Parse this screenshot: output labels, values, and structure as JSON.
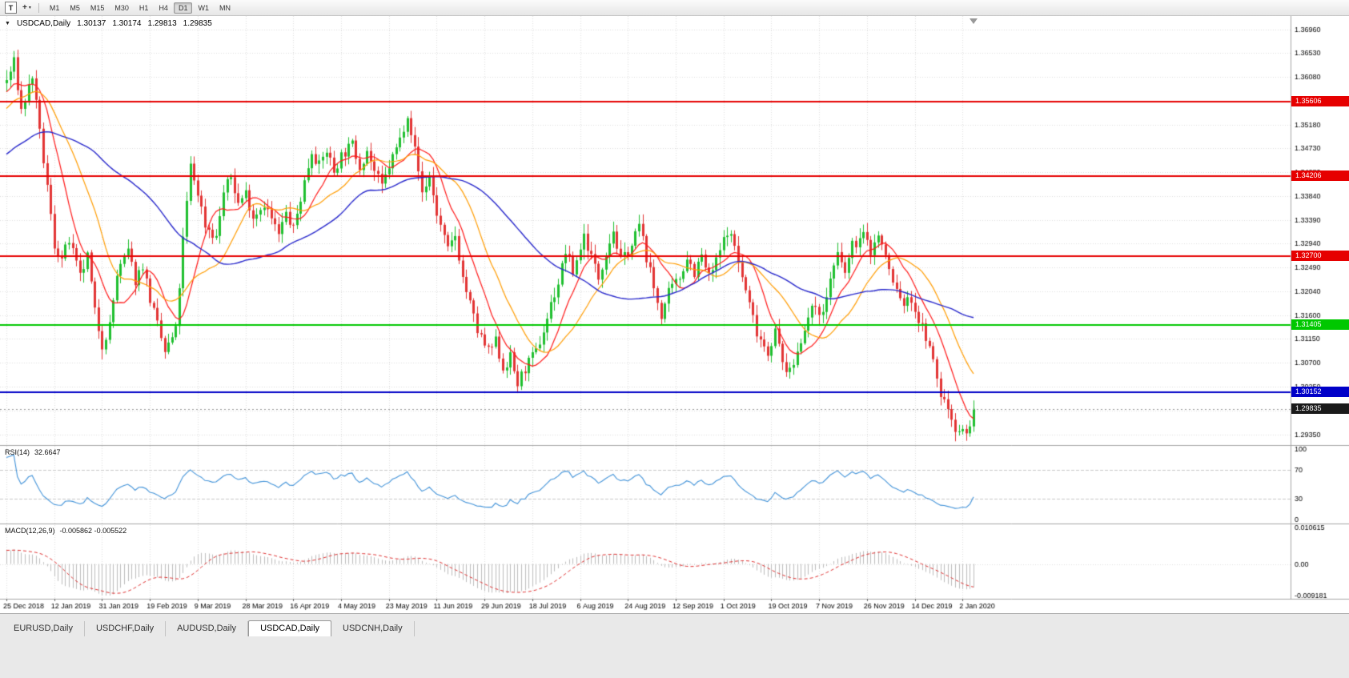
{
  "window": {
    "title": "USDCAD,Daily"
  },
  "icons": {
    "chart_expander": "▼",
    "dropdown_caret": "▾",
    "cursor_tool": "+"
  },
  "toolbar": {
    "text_tool_label": "T",
    "timeframes": [
      "M1",
      "M5",
      "M15",
      "M30",
      "H1",
      "H4",
      "D1",
      "W1",
      "MN"
    ],
    "active_timeframe": "D1"
  },
  "chart": {
    "symbol_header": "USDCAD,Daily",
    "ohlc": {
      "open": "1.30137",
      "high": "1.30174",
      "low": "1.29813",
      "close": "1.29835"
    },
    "price_axis_labels": [
      "1.36960",
      "1.36530",
      "1.36080",
      "1.35630",
      "1.35180",
      "1.34730",
      "1.34280",
      "1.33840",
      "1.33390",
      "1.32940",
      "1.32490",
      "1.32040",
      "1.31600",
      "1.31150",
      "1.30700",
      "1.30250",
      "1.29800",
      "1.29350"
    ],
    "date_labels": [
      "25 Dec 2018",
      "12 Jan 2019",
      "31 Jan 2019",
      "19 Feb 2019",
      "9 Mar 2019",
      "28 Mar 2019",
      "16 Apr 2019",
      "4 May 2019",
      "23 May 2019",
      "11 Jun 2019",
      "29 Jun 2019",
      "18 Jul 2019",
      "6 Aug 2019",
      "24 Aug 2019",
      "12 Sep 2019",
      "1 Oct 2019",
      "19 Oct 2019",
      "7 Nov 2019",
      "26 Nov 2019",
      "14 Dec 2019",
      "2 Jan 2020"
    ],
    "levels": [
      {
        "value": "1.35606",
        "price": 1.35606,
        "color": "#e60000",
        "type": "resistance"
      },
      {
        "value": "1.34206",
        "price": 1.34206,
        "color": "#e60000",
        "type": "resistance"
      },
      {
        "value": "1.32700",
        "price": 1.327,
        "color": "#e60000",
        "type": "resistance"
      },
      {
        "value": "1.31405",
        "price": 1.31405,
        "color": "#00c800",
        "type": "support"
      },
      {
        "value": "1.30152",
        "price": 1.30152,
        "color": "#0000c8",
        "type": "support"
      }
    ],
    "current_price": {
      "value": "1.29835",
      "price": 1.29835,
      "badge_color": "#1a1a1a"
    }
  },
  "indicators": {
    "rsi": {
      "label": "RSI(14)",
      "value": "32.6647",
      "period": 14,
      "color": "#4293d9",
      "range": [
        0,
        100
      ],
      "level_lines": [
        70,
        30
      ],
      "axis_labels": [
        {
          "text": "100",
          "v": 100
        },
        {
          "text": "70",
          "v": 70
        },
        {
          "text": "30",
          "v": 30
        },
        {
          "text": "0",
          "v": 0
        }
      ]
    },
    "macd": {
      "label": "MACD(12,26,9)",
      "values": "-0.005862 -0.005522",
      "fast": 12,
      "slow": 26,
      "signal": 9,
      "max": 0.010615,
      "min": -0.009181,
      "histogram_color": "#bdbdbd",
      "signal_color": "#e03030",
      "axis_labels": [
        {
          "text": "0.010615",
          "v": 0.010615
        },
        {
          "text": "0.00",
          "v": 0
        },
        {
          "text": "-0.009181",
          "v": -0.009181
        }
      ]
    }
  },
  "chart_data": {
    "type": "candlestick",
    "symbol": "USDCAD",
    "timeframe": "Daily",
    "bars": 264,
    "bars_per_date_tick": 13,
    "last_close": 1.29835,
    "price_axis_range": {
      "top": 1.3722,
      "bottom": 1.2917
    },
    "up_color": "#1fbf2f",
    "down_color": "#e23434",
    "moving_averages": [
      {
        "period": 10,
        "color": "#ff1a1a"
      },
      {
        "period": 20,
        "color": "#ff9c00"
      },
      {
        "period": 50,
        "color": "#2929cc"
      }
    ],
    "price_path": [
      [
        -60,
        1.331
      ],
      [
        -40,
        1.337
      ],
      [
        -20,
        1.348
      ],
      [
        -8,
        1.356
      ],
      [
        0,
        1.36
      ],
      [
        2,
        1.3635
      ],
      [
        4,
        1.3545
      ],
      [
        7,
        1.361
      ],
      [
        9,
        1.35
      ],
      [
        11,
        1.34
      ],
      [
        13,
        1.329
      ],
      [
        15,
        1.3265
      ],
      [
        17,
        1.33
      ],
      [
        20,
        1.323
      ],
      [
        22,
        1.327
      ],
      [
        24,
        1.3165
      ],
      [
        26,
        1.3105
      ],
      [
        28,
        1.314
      ],
      [
        30,
        1.3235
      ],
      [
        33,
        1.328
      ],
      [
        35,
        1.3225
      ],
      [
        37,
        1.3255
      ],
      [
        39,
        1.319
      ],
      [
        41,
        1.314
      ],
      [
        43,
        1.309
      ],
      [
        46,
        1.313
      ],
      [
        48,
        1.33
      ],
      [
        50,
        1.344
      ],
      [
        52,
        1.339
      ],
      [
        54,
        1.333
      ],
      [
        57,
        1.3305
      ],
      [
        59,
        1.339
      ],
      [
        61,
        1.342
      ],
      [
        63,
        1.337
      ],
      [
        65,
        1.339
      ],
      [
        67,
        1.3345
      ],
      [
        70,
        1.337
      ],
      [
        72,
        1.334
      ],
      [
        74,
        1.331
      ],
      [
        76,
        1.335
      ],
      [
        78,
        1.332
      ],
      [
        80,
        1.338
      ],
      [
        83,
        1.347
      ],
      [
        85,
        1.344
      ],
      [
        87,
        1.347
      ],
      [
        89,
        1.343
      ],
      [
        91,
        1.346
      ],
      [
        94,
        1.348
      ],
      [
        96,
        1.344
      ],
      [
        98,
        1.347
      ],
      [
        100,
        1.343
      ],
      [
        102,
        1.34
      ],
      [
        104,
        1.344
      ],
      [
        107,
        1.349
      ],
      [
        109,
        1.354
      ],
      [
        111,
        1.347
      ],
      [
        113,
        1.339
      ],
      [
        115,
        1.342
      ],
      [
        117,
        1.335
      ],
      [
        120,
        1.328
      ],
      [
        122,
        1.331
      ],
      [
        124,
        1.323
      ],
      [
        126,
        1.318
      ],
      [
        128,
        1.313
      ],
      [
        131,
        1.309
      ],
      [
        133,
        1.311
      ],
      [
        135,
        1.306
      ],
      [
        137,
        1.308
      ],
      [
        139,
        1.303
      ],
      [
        141,
        1.306
      ],
      [
        144,
        1.309
      ],
      [
        146,
        1.313
      ],
      [
        148,
        1.318
      ],
      [
        150,
        1.322
      ],
      [
        152,
        1.328
      ],
      [
        154,
        1.324
      ],
      [
        157,
        1.331
      ],
      [
        159,
        1.327
      ],
      [
        161,
        1.323
      ],
      [
        163,
        1.328
      ],
      [
        165,
        1.332
      ],
      [
        167,
        1.326
      ],
      [
        170,
        1.329
      ],
      [
        172,
        1.333
      ],
      [
        174,
        1.327
      ],
      [
        176,
        1.321
      ],
      [
        178,
        1.316
      ],
      [
        180,
        1.32
      ],
      [
        183,
        1.323
      ],
      [
        185,
        1.327
      ],
      [
        187,
        1.324
      ],
      [
        189,
        1.327
      ],
      [
        191,
        1.323
      ],
      [
        193,
        1.326
      ],
      [
        196,
        1.332
      ],
      [
        198,
        1.329
      ],
      [
        200,
        1.323
      ],
      [
        202,
        1.318
      ],
      [
        204,
        1.313
      ],
      [
        207,
        1.309
      ],
      [
        209,
        1.313
      ],
      [
        211,
        1.307
      ],
      [
        213,
        1.305
      ],
      [
        215,
        1.309
      ],
      [
        217,
        1.314
      ],
      [
        220,
        1.318
      ],
      [
        222,
        1.316
      ],
      [
        224,
        1.323
      ],
      [
        226,
        1.327
      ],
      [
        228,
        1.324
      ],
      [
        230,
        1.329
      ],
      [
        233,
        1.331
      ],
      [
        235,
        1.328
      ],
      [
        237,
        1.331
      ],
      [
        239,
        1.327
      ],
      [
        241,
        1.322
      ],
      [
        244,
        1.318
      ],
      [
        246,
        1.319
      ],
      [
        248,
        1.315
      ],
      [
        250,
        1.312
      ],
      [
        252,
        1.307
      ],
      [
        254,
        1.301
      ],
      [
        256,
        1.2985
      ],
      [
        258,
        1.295
      ],
      [
        260,
        1.294
      ],
      [
        262,
        1.295
      ],
      [
        263,
        1.29835
      ]
    ]
  },
  "tabs": {
    "items": [
      {
        "label": "EURUSD,Daily"
      },
      {
        "label": "USDCHF,Daily"
      },
      {
        "label": "AUDUSD,Daily"
      },
      {
        "label": "USDCAD,Daily"
      },
      {
        "label": "USDCNH,Daily"
      }
    ],
    "active": "USDCAD,Daily"
  }
}
